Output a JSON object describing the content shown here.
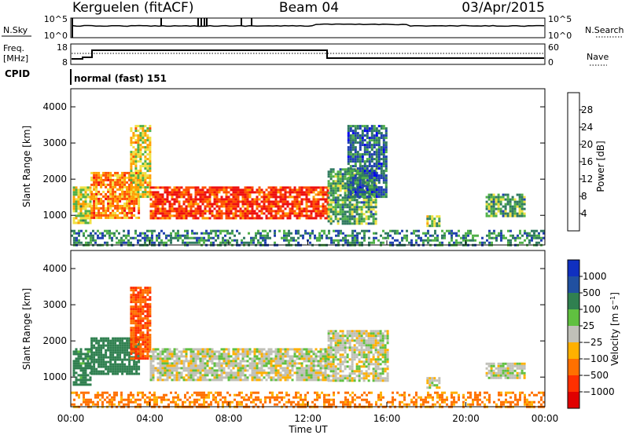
{
  "header": {
    "station": "Kerguelen (fitACF)",
    "beam": "Beam 04",
    "date": "03/Apr/2015"
  },
  "nsky_panel": {
    "label": "N.Sky",
    "left_top": "10^5",
    "left_bottom": "10^0",
    "right_top": "10^5",
    "right_bottom": "10^0",
    "right_label": "N.Search"
  },
  "freq_panel": {
    "label_line1": "Freq.",
    "label_line2": "[MHz]",
    "left_top": "18",
    "left_bottom": "8",
    "right_top": "60",
    "right_bottom": "0",
    "right_label": "Nave"
  },
  "cpid": {
    "label": "CPID",
    "value": "normal (fast) 151"
  },
  "colors": {
    "frame": "#000000",
    "groundscatter": "#c0c0b8"
  },
  "chart_data": [
    {
      "type": "heatmap",
      "title": "",
      "xlabel": "Time UT",
      "ylabel": "Slant Range [km]",
      "xlim": [
        0,
        24
      ],
      "ylim": [
        180,
        4500
      ],
      "x_ticks": [
        "00:00",
        "04:00",
        "08:00",
        "12:00",
        "16:00",
        "20:00",
        "00:00"
      ],
      "y_ticks": [
        "1000",
        "2000",
        "3000",
        "4000"
      ],
      "colorbar": {
        "label": "Power [dB]",
        "ticks": [
          "28",
          "24",
          "20",
          "16",
          "12",
          "8",
          "4"
        ],
        "range": [
          0,
          30
        ],
        "colors": [
          "#0000ee",
          "#2040b0",
          "#307a60",
          "#50b048",
          "#f0e040",
          "#ffa000",
          "#ff5000",
          "#ee1010"
        ]
      },
      "echo_regions": [
        {
          "t": [
            0.1,
            1.0
          ],
          "r": [
            800,
            1800
          ],
          "value": 16
        },
        {
          "t": [
            1.0,
            3.5
          ],
          "r": [
            900,
            2200
          ],
          "value": 22
        },
        {
          "t": [
            3.0,
            4.0
          ],
          "r": [
            1500,
            3500
          ],
          "value": 18
        },
        {
          "t": [
            4.0,
            13.0
          ],
          "r": [
            900,
            1800
          ],
          "value": 26
        },
        {
          "t": [
            13.0,
            15.5
          ],
          "r": [
            800,
            2300
          ],
          "value": 12
        },
        {
          "t": [
            14.0,
            16.0
          ],
          "r": [
            1500,
            3500
          ],
          "value": 8
        },
        {
          "t": [
            18.0,
            18.6
          ],
          "r": [
            700,
            1000
          ],
          "value": 14
        },
        {
          "t": [
            21.0,
            23.0
          ],
          "r": [
            1000,
            1600
          ],
          "value": 12
        },
        {
          "t": [
            0.0,
            24.0
          ],
          "r": [
            200,
            600
          ],
          "value": 10
        }
      ]
    },
    {
      "type": "heatmap",
      "title": "",
      "xlabel": "Time UT",
      "ylabel": "Slant Range [km]",
      "xlim": [
        0,
        24
      ],
      "ylim": [
        180,
        4500
      ],
      "x_ticks": [
        "00:00",
        "04:00",
        "08:00",
        "12:00",
        "16:00",
        "20:00",
        "00:00"
      ],
      "y_ticks": [
        "1000",
        "2000",
        "3000",
        "4000"
      ],
      "colorbar": {
        "label": "Velocity [m s^-1]",
        "ticks": [
          "1000",
          "500",
          "100",
          "25",
          "−25",
          "−100",
          "−500",
          "−1000"
        ],
        "colors": [
          "#1030c0",
          "#2050a0",
          "#308050",
          "#60c040",
          "#c0c0b8",
          "#ffb000",
          "#ff7000",
          "#ff3000",
          "#e00000"
        ]
      },
      "echo_regions": [
        {
          "t": [
            0.1,
            1.0
          ],
          "r": [
            800,
            1800
          ],
          "value": 100
        },
        {
          "t": [
            1.0,
            3.5
          ],
          "r": [
            1100,
            2100
          ],
          "value": 200
        },
        {
          "t": [
            3.0,
            4.0
          ],
          "r": [
            1500,
            3500
          ],
          "value": -300
        },
        {
          "t": [
            4.0,
            13.0
          ],
          "r": [
            900,
            1800
          ],
          "value": 0
        },
        {
          "t": [
            13.0,
            16.0
          ],
          "r": [
            900,
            2300
          ],
          "value": 0
        },
        {
          "t": [
            18.0,
            18.6
          ],
          "r": [
            700,
            1000
          ],
          "value": 0
        },
        {
          "t": [
            21.0,
            23.0
          ],
          "r": [
            1000,
            1400
          ],
          "value": 0
        },
        {
          "t": [
            0.0,
            24.0
          ],
          "r": [
            200,
            600
          ],
          "value": -80
        }
      ]
    }
  ]
}
